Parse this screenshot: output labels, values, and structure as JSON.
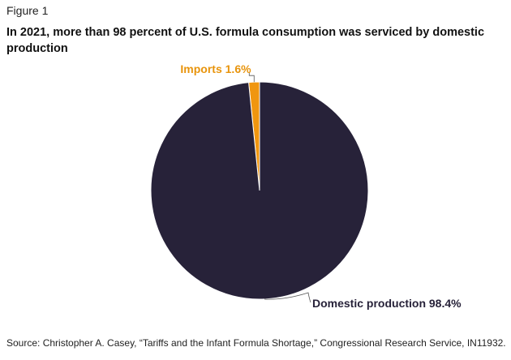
{
  "figure_label": "Figure 1",
  "chart_data": {
    "type": "pie",
    "title": "In 2021, more than 98 percent of U.S. formula consumption was serviced by domestic production",
    "slices": [
      {
        "label": "Imports 1.6%",
        "value": 1.6,
        "color": "#f0960f",
        "label_color": "#e8940c"
      },
      {
        "label": "Domestic production 98.4%",
        "value": 98.4,
        "color": "#272239",
        "label_color": "#272239"
      }
    ]
  },
  "source": "Source: Christopher A. Casey, “Tariffs and the Infant Formula Shortage,” Congressional Research Service, IN11932."
}
